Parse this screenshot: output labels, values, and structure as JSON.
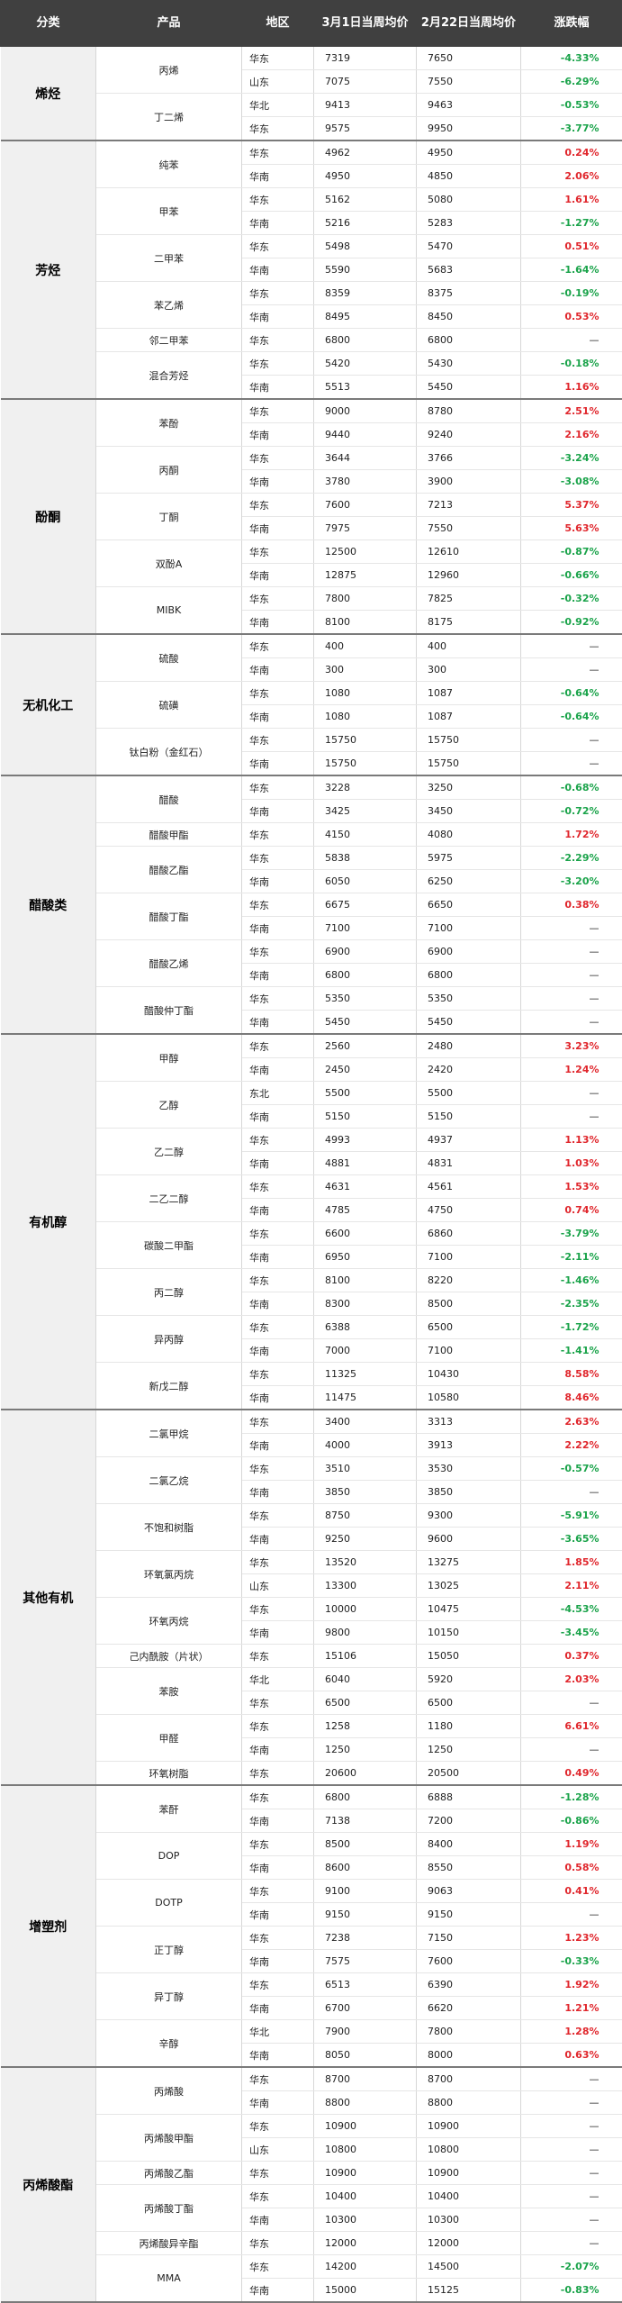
{
  "header": {
    "category": "分类",
    "product": "产品",
    "region": "地区",
    "current": "3月1日当周均价",
    "previous": "2月22日当周均价",
    "change": "涨跌幅"
  },
  "groups": [
    {
      "category": "烯烃",
      "products": [
        {
          "name": "丙烯",
          "rows": [
            {
              "region": "华东",
              "current": "7319",
              "previous": "7650",
              "change": "-4.33%"
            },
            {
              "region": "山东",
              "current": "7075",
              "previous": "7550",
              "change": "-6.29%"
            }
          ]
        },
        {
          "name": "丁二烯",
          "rows": [
            {
              "region": "华北",
              "current": "9413",
              "previous": "9463",
              "change": "-0.53%"
            },
            {
              "region": "华东",
              "current": "9575",
              "previous": "9950",
              "change": "-3.77%"
            }
          ]
        }
      ]
    },
    {
      "category": "芳烃",
      "products": [
        {
          "name": "纯苯",
          "rows": [
            {
              "region": "华东",
              "current": "4962",
              "previous": "4950",
              "change": "0.24%"
            },
            {
              "region": "华南",
              "current": "4950",
              "previous": "4850",
              "change": "2.06%"
            }
          ]
        },
        {
          "name": "甲苯",
          "rows": [
            {
              "region": "华东",
              "current": "5162",
              "previous": "5080",
              "change": "1.61%"
            },
            {
              "region": "华南",
              "current": "5216",
              "previous": "5283",
              "change": "-1.27%"
            }
          ]
        },
        {
          "name": "二甲苯",
          "rows": [
            {
              "region": "华东",
              "current": "5498",
              "previous": "5470",
              "change": "0.51%"
            },
            {
              "region": "华南",
              "current": "5590",
              "previous": "5683",
              "change": "-1.64%"
            }
          ]
        },
        {
          "name": "苯乙烯",
          "rows": [
            {
              "region": "华东",
              "current": "8359",
              "previous": "8375",
              "change": "-0.19%"
            },
            {
              "region": "华南",
              "current": "8495",
              "previous": "8450",
              "change": "0.53%"
            }
          ]
        },
        {
          "name": "邻二甲苯",
          "rows": [
            {
              "region": "华东",
              "current": "6800",
              "previous": "6800",
              "change": "—"
            }
          ]
        },
        {
          "name": "混合芳烃",
          "rows": [
            {
              "region": "华东",
              "current": "5420",
              "previous": "5430",
              "change": "-0.18%"
            },
            {
              "region": "华南",
              "current": "5513",
              "previous": "5450",
              "change": "1.16%"
            }
          ]
        }
      ]
    },
    {
      "category": "酚酮",
      "products": [
        {
          "name": "苯酚",
          "rows": [
            {
              "region": "华东",
              "current": "9000",
              "previous": "8780",
              "change": "2.51%"
            },
            {
              "region": "华南",
              "current": "9440",
              "previous": "9240",
              "change": "2.16%"
            }
          ]
        },
        {
          "name": "丙酮",
          "rows": [
            {
              "region": "华东",
              "current": "3644",
              "previous": "3766",
              "change": "-3.24%"
            },
            {
              "region": "华南",
              "current": "3780",
              "previous": "3900",
              "change": "-3.08%"
            }
          ]
        },
        {
          "name": "丁酮",
          "rows": [
            {
              "region": "华东",
              "current": "7600",
              "previous": "7213",
              "change": "5.37%"
            },
            {
              "region": "华南",
              "current": "7975",
              "previous": "7550",
              "change": "5.63%"
            }
          ]
        },
        {
          "name": "双酚A",
          "rows": [
            {
              "region": "华东",
              "current": "12500",
              "previous": "12610",
              "change": "-0.87%"
            },
            {
              "region": "华南",
              "current": "12875",
              "previous": "12960",
              "change": "-0.66%"
            }
          ]
        },
        {
          "name": "MIBK",
          "rows": [
            {
              "region": "华东",
              "current": "7800",
              "previous": "7825",
              "change": "-0.32%"
            },
            {
              "region": "华南",
              "current": "8100",
              "previous": "8175",
              "change": "-0.92%"
            }
          ]
        }
      ]
    },
    {
      "category": "无机化工",
      "products": [
        {
          "name": "硫酸",
          "rows": [
            {
              "region": "华东",
              "current": "400",
              "previous": "400",
              "change": "—"
            },
            {
              "region": "华南",
              "current": "300",
              "previous": "300",
              "change": "—"
            }
          ]
        },
        {
          "name": "硫磺",
          "rows": [
            {
              "region": "华东",
              "current": "1080",
              "previous": "1087",
              "change": "-0.64%"
            },
            {
              "region": "华南",
              "current": "1080",
              "previous": "1087",
              "change": "-0.64%"
            }
          ]
        },
        {
          "name": "钛白粉（金红石）",
          "rows": [
            {
              "region": "华东",
              "current": "15750",
              "previous": "15750",
              "change": "—"
            },
            {
              "region": "华南",
              "current": "15750",
              "previous": "15750",
              "change": "—"
            }
          ]
        }
      ]
    },
    {
      "category": "醋酸类",
      "products": [
        {
          "name": "醋酸",
          "rows": [
            {
              "region": "华东",
              "current": "3228",
              "previous": "3250",
              "change": "-0.68%"
            },
            {
              "region": "华南",
              "current": "3425",
              "previous": "3450",
              "change": "-0.72%"
            }
          ]
        },
        {
          "name": "醋酸甲酯",
          "rows": [
            {
              "region": "华东",
              "current": "4150",
              "previous": "4080",
              "change": "1.72%"
            }
          ]
        },
        {
          "name": "醋酸乙酯",
          "rows": [
            {
              "region": "华东",
              "current": "5838",
              "previous": "5975",
              "change": "-2.29%"
            },
            {
              "region": "华南",
              "current": "6050",
              "previous": "6250",
              "change": "-3.20%"
            }
          ]
        },
        {
          "name": "醋酸丁酯",
          "rows": [
            {
              "region": "华东",
              "current": "6675",
              "previous": "6650",
              "change": "0.38%"
            },
            {
              "region": "华南",
              "current": "7100",
              "previous": "7100",
              "change": "—"
            }
          ]
        },
        {
          "name": "醋酸乙烯",
          "rows": [
            {
              "region": "华东",
              "current": "6900",
              "previous": "6900",
              "change": "—"
            },
            {
              "region": "华南",
              "current": "6800",
              "previous": "6800",
              "change": "—"
            }
          ]
        },
        {
          "name": "醋酸仲丁酯",
          "rows": [
            {
              "region": "华东",
              "current": "5350",
              "previous": "5350",
              "change": "—"
            },
            {
              "region": "华南",
              "current": "5450",
              "previous": "5450",
              "change": "—"
            }
          ]
        }
      ]
    },
    {
      "category": "有机醇",
      "products": [
        {
          "name": "甲醇",
          "rows": [
            {
              "region": "华东",
              "current": "2560",
              "previous": "2480",
              "change": "3.23%"
            },
            {
              "region": "华南",
              "current": "2450",
              "previous": "2420",
              "change": "1.24%"
            }
          ]
        },
        {
          "name": "乙醇",
          "rows": [
            {
              "region": "东北",
              "current": "5500",
              "previous": "5500",
              "change": "—"
            },
            {
              "region": "华南",
              "current": "5150",
              "previous": "5150",
              "change": "—"
            }
          ]
        },
        {
          "name": "乙二醇",
          "rows": [
            {
              "region": "华东",
              "current": "4993",
              "previous": "4937",
              "change": "1.13%"
            },
            {
              "region": "华南",
              "current": "4881",
              "previous": "4831",
              "change": "1.03%"
            }
          ]
        },
        {
          "name": "二乙二醇",
          "rows": [
            {
              "region": "华东",
              "current": "4631",
              "previous": "4561",
              "change": "1.53%"
            },
            {
              "region": "华南",
              "current": "4785",
              "previous": "4750",
              "change": "0.74%"
            }
          ]
        },
        {
          "name": "碳酸二甲酯",
          "rows": [
            {
              "region": "华东",
              "current": "6600",
              "previous": "6860",
              "change": "-3.79%"
            },
            {
              "region": "华南",
              "current": "6950",
              "previous": "7100",
              "change": "-2.11%"
            }
          ]
        },
        {
          "name": "丙二醇",
          "rows": [
            {
              "region": "华东",
              "current": "8100",
              "previous": "8220",
              "change": "-1.46%"
            },
            {
              "region": "华南",
              "current": "8300",
              "previous": "8500",
              "change": "-2.35%"
            }
          ]
        },
        {
          "name": "异丙醇",
          "rows": [
            {
              "region": "华东",
              "current": "6388",
              "previous": "6500",
              "change": "-1.72%"
            },
            {
              "region": "华南",
              "current": "7000",
              "previous": "7100",
              "change": "-1.41%"
            }
          ]
        },
        {
          "name": "新戊二醇",
          "rows": [
            {
              "region": "华东",
              "current": "11325",
              "previous": "10430",
              "change": "8.58%"
            },
            {
              "region": "华南",
              "current": "11475",
              "previous": "10580",
              "change": "8.46%"
            }
          ]
        }
      ]
    },
    {
      "category": "其他有机",
      "products": [
        {
          "name": "二氯甲烷",
          "rows": [
            {
              "region": "华东",
              "current": "3400",
              "previous": "3313",
              "change": "2.63%"
            },
            {
              "region": "华南",
              "current": "4000",
              "previous": "3913",
              "change": "2.22%"
            }
          ]
        },
        {
          "name": "二氯乙烷",
          "rows": [
            {
              "region": "华东",
              "current": "3510",
              "previous": "3530",
              "change": "-0.57%"
            },
            {
              "region": "华南",
              "current": "3850",
              "previous": "3850",
              "change": "—"
            }
          ]
        },
        {
          "name": "不饱和树脂",
          "rows": [
            {
              "region": "华东",
              "current": "8750",
              "previous": "9300",
              "change": "-5.91%"
            },
            {
              "region": "华南",
              "current": "9250",
              "previous": "9600",
              "change": "-3.65%"
            }
          ]
        },
        {
          "name": "环氧氯丙烷",
          "rows": [
            {
              "region": "华东",
              "current": "13520",
              "previous": "13275",
              "change": "1.85%"
            },
            {
              "region": "山东",
              "current": "13300",
              "previous": "13025",
              "change": "2.11%"
            }
          ]
        },
        {
          "name": "环氧丙烷",
          "rows": [
            {
              "region": "华东",
              "current": "10000",
              "previous": "10475",
              "change": "-4.53%"
            },
            {
              "region": "华南",
              "current": "9800",
              "previous": "10150",
              "change": "-3.45%"
            }
          ]
        },
        {
          "name": "己内酰胺（片状）",
          "rows": [
            {
              "region": "华东",
              "current": "15106",
              "previous": "15050",
              "change": "0.37%"
            }
          ]
        },
        {
          "name": "苯胺",
          "rows": [
            {
              "region": "华北",
              "current": "6040",
              "previous": "5920",
              "change": "2.03%"
            },
            {
              "region": "华东",
              "current": "6500",
              "previous": "6500",
              "change": "—"
            }
          ]
        },
        {
          "name": "甲醛",
          "rows": [
            {
              "region": "华东",
              "current": "1258",
              "previous": "1180",
              "change": "6.61%"
            },
            {
              "region": "华南",
              "current": "1250",
              "previous": "1250",
              "change": "—"
            }
          ]
        },
        {
          "name": "环氧树脂",
          "rows": [
            {
              "region": "华东",
              "current": "20600",
              "previous": "20500",
              "change": "0.49%"
            }
          ]
        }
      ]
    },
    {
      "category": "增塑剂",
      "products": [
        {
          "name": "苯酐",
          "rows": [
            {
              "region": "华东",
              "current": "6800",
              "previous": "6888",
              "change": "-1.28%"
            },
            {
              "region": "华南",
              "current": "7138",
              "previous": "7200",
              "change": "-0.86%"
            }
          ]
        },
        {
          "name": "DOP",
          "rows": [
            {
              "region": "华东",
              "current": "8500",
              "previous": "8400",
              "change": "1.19%"
            },
            {
              "region": "华南",
              "current": "8600",
              "previous": "8550",
              "change": "0.58%"
            }
          ]
        },
        {
          "name": "DOTP",
          "rows": [
            {
              "region": "华东",
              "current": "9100",
              "previous": "9063",
              "change": "0.41%"
            },
            {
              "region": "华南",
              "current": "9150",
              "previous": "9150",
              "change": "—"
            }
          ]
        },
        {
          "name": "正丁醇",
          "rows": [
            {
              "region": "华东",
              "current": "7238",
              "previous": "7150",
              "change": "1.23%"
            },
            {
              "region": "华南",
              "current": "7575",
              "previous": "7600",
              "change": "-0.33%"
            }
          ]
        },
        {
          "name": "异丁醇",
          "rows": [
            {
              "region": "华东",
              "current": "6513",
              "previous": "6390",
              "change": "1.92%"
            },
            {
              "region": "华南",
              "current": "6700",
              "previous": "6620",
              "change": "1.21%"
            }
          ]
        },
        {
          "name": "辛醇",
          "rows": [
            {
              "region": "华北",
              "current": "7900",
              "previous": "7800",
              "change": "1.28%"
            },
            {
              "region": "华南",
              "current": "8050",
              "previous": "8000",
              "change": "0.63%"
            }
          ]
        }
      ]
    },
    {
      "category": "丙烯酸酯",
      "products": [
        {
          "name": "丙烯酸",
          "rows": [
            {
              "region": "华东",
              "current": "8700",
              "previous": "8700",
              "change": "—"
            },
            {
              "region": "华南",
              "current": "8800",
              "previous": "8800",
              "change": "—"
            }
          ]
        },
        {
          "name": "丙烯酸甲酯",
          "rows": [
            {
              "region": "华东",
              "current": "10900",
              "previous": "10900",
              "change": "—"
            },
            {
              "region": "山东",
              "current": "10800",
              "previous": "10800",
              "change": "—"
            }
          ]
        },
        {
          "name": "丙烯酸乙酯",
          "rows": [
            {
              "region": "华东",
              "current": "10900",
              "previous": "10900",
              "change": "—"
            }
          ]
        },
        {
          "name": "丙烯酸丁酯",
          "rows": [
            {
              "region": "华东",
              "current": "10400",
              "previous": "10400",
              "change": "—"
            },
            {
              "region": "华南",
              "current": "10300",
              "previous": "10300",
              "change": "—"
            }
          ]
        },
        {
          "name": "丙烯酸异辛酯",
          "rows": [
            {
              "region": "华东",
              "current": "12000",
              "previous": "12000",
              "change": "—"
            }
          ]
        },
        {
          "name": "MMA",
          "rows": [
            {
              "region": "华东",
              "current": "14200",
              "previous": "14500",
              "change": "-2.07%"
            },
            {
              "region": "华南",
              "current": "15000",
              "previous": "15125",
              "change": "-0.83%"
            }
          ]
        }
      ]
    }
  ]
}
